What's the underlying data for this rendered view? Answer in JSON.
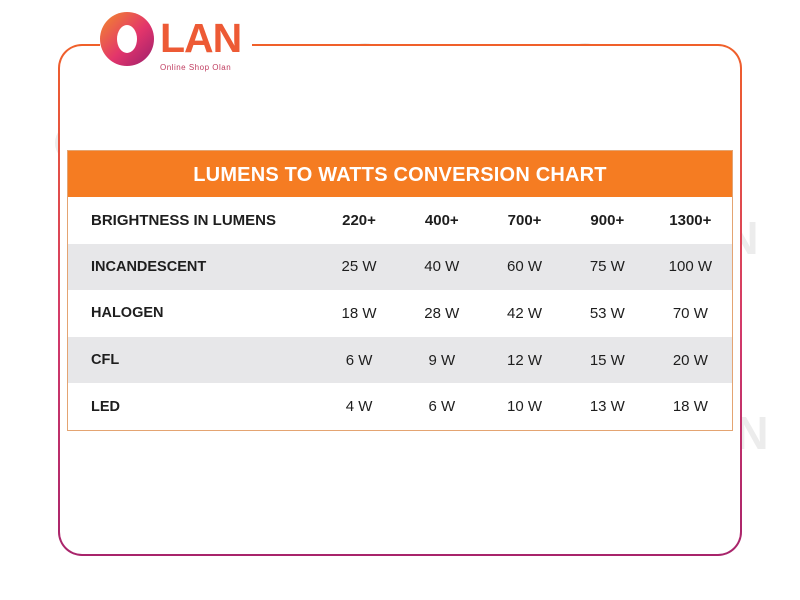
{
  "brand": {
    "name": "LAN",
    "tagline": "Online Shop Olan"
  },
  "chart_data": {
    "type": "table",
    "title": "LUMENS TO WATTS CONVERSION CHART",
    "header": {
      "label": "BRIGHTNESS IN LUMENS",
      "columns": [
        "220+",
        "400+",
        "700+",
        "900+",
        "1300+"
      ]
    },
    "rows": [
      {
        "label": "INCANDESCENT",
        "values": [
          "25 W",
          "40 W",
          "60 W",
          "75 W",
          "100 W"
        ]
      },
      {
        "label": "HALOGEN",
        "values": [
          "18 W",
          "28 W",
          "42 W",
          "53 W",
          "70 W"
        ]
      },
      {
        "label": "CFL",
        "values": [
          "6 W",
          "9 W",
          "12 W",
          "15 W",
          "20 W"
        ]
      },
      {
        "label": "LED",
        "values": [
          "4 W",
          "6 W",
          "10 W",
          "13 W",
          "18 W"
        ]
      }
    ]
  },
  "colors": {
    "title_bar": "#f57c22",
    "shaded_row": "#e2e2e4",
    "frame_top": "#f0602a",
    "frame_bottom": "#a8246b"
  }
}
